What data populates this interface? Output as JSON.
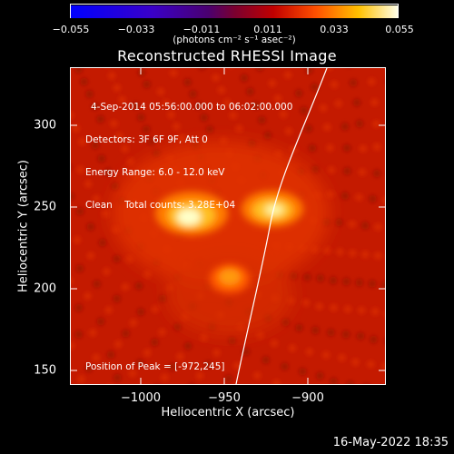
{
  "colorbar": {
    "tick_labels": [
      "−0.055",
      "−0.033",
      "−0.011",
      "0.011",
      "0.033",
      "0.055"
    ],
    "units": "(photons cm⁻² s⁻¹ asec⁻²)"
  },
  "plot": {
    "title": "Reconstructed RHESSI Image",
    "annotation_lines": [
      "4-Sep-2014 05:56:00.000 to 06:02:00.000",
      "Detectors: 3F 6F 9F, Att 0",
      "Energy Range: 6.0 - 12.0 keV",
      "Clean    Total counts: 3.28E+04"
    ],
    "peak_text": "Position of Peak = [-972,245]",
    "x_axis": {
      "label": "Heliocentric X (arcsec)",
      "tick_labels": [
        "−1000",
        "−950",
        "−900"
      ]
    },
    "y_axis": {
      "label": "Heliocentric Y (arcsec)",
      "tick_labels": [
        "300",
        "250",
        "200",
        "150"
      ]
    }
  },
  "footer": {
    "date": "16-May-2022 18:35"
  },
  "colors": {
    "background": "#000000",
    "limb_line": "#ffffff"
  }
}
